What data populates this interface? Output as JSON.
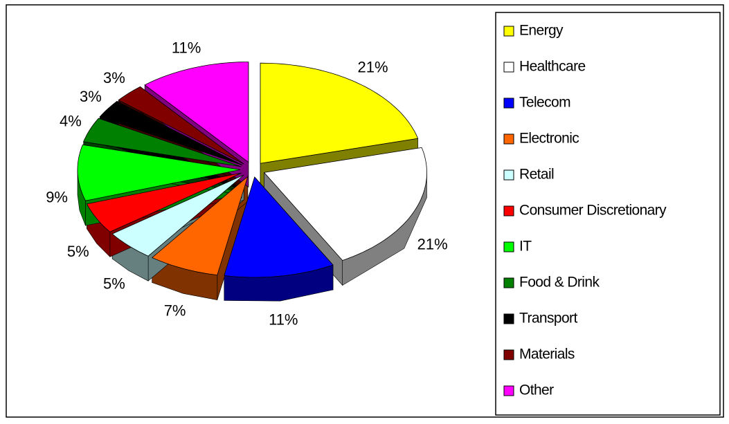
{
  "chart_data": {
    "type": "pie",
    "categories": [
      "Energy",
      "Healthcare",
      "Telecom",
      "Electronic",
      "Retail",
      "Consumer Discretionary",
      "IT",
      "Food & Drink",
      "Transport",
      "Materials",
      "Other"
    ],
    "values": [
      21,
      21,
      11,
      7,
      5,
      5,
      9,
      4,
      3,
      3,
      11
    ],
    "value_labels": [
      "21%",
      "21%",
      "11%",
      "7%",
      "5%",
      "5%",
      "9%",
      "4%",
      "3%",
      "3%",
      "11%"
    ],
    "colors": [
      "#ffff00",
      "#ffffff",
      "#0000ff",
      "#ff6600",
      "#ccffff",
      "#ff0000",
      "#00ff00",
      "#008000",
      "#000000",
      "#800000",
      "#ff00ff"
    ],
    "legend": "right"
  }
}
